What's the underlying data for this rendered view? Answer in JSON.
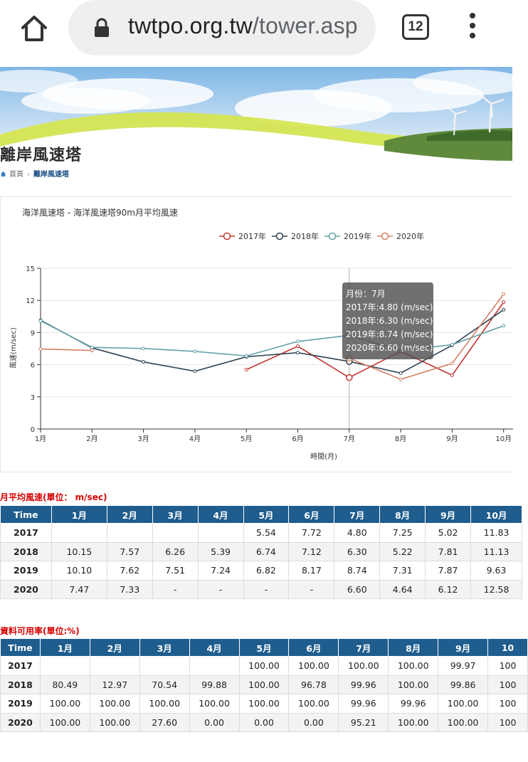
{
  "browser": {
    "url_host": "twtpo.org.tw",
    "url_path": "/tower.asp",
    "tab_count": "12"
  },
  "page": {
    "title": "離岸風速塔",
    "breadcrumb_home": "首頁",
    "breadcrumb_current": "離岸風速塔"
  },
  "chart_data": {
    "type": "line",
    "title": "海洋風速塔 - 海洋風速塔90m月平均風速",
    "xlabel": "時間(月)",
    "ylabel": "風速(m/sec)",
    "categories": [
      "1月",
      "2月",
      "3月",
      "4月",
      "5月",
      "6月",
      "7月",
      "8月",
      "9月",
      "10月"
    ],
    "ylim": [
      0,
      15
    ],
    "yticks": [
      "0",
      "3",
      "6",
      "9",
      "12",
      "15"
    ],
    "legend_position": "top",
    "grid": true,
    "series": [
      {
        "name": "2017年",
        "color": "#c23531",
        "values": [
          null,
          null,
          null,
          null,
          5.54,
          7.72,
          4.8,
          7.25,
          5.02,
          11.83
        ]
      },
      {
        "name": "2018年",
        "color": "#2f4554",
        "values": [
          10.15,
          7.57,
          6.26,
          5.39,
          6.74,
          7.12,
          6.3,
          5.22,
          7.81,
          11.13
        ]
      },
      {
        "name": "2019年",
        "color": "#61a0a8",
        "values": [
          10.1,
          7.62,
          7.51,
          7.24,
          6.82,
          8.17,
          8.74,
          7.31,
          7.87,
          9.63
        ]
      },
      {
        "name": "2020年",
        "color": "#d48265",
        "values": [
          7.47,
          7.33,
          null,
          null,
          null,
          null,
          6.6,
          4.64,
          6.12,
          12.58
        ]
      }
    ],
    "tooltip": {
      "header": "月份：7月",
      "lines": [
        "2017年:4.80 (m/sec)",
        "2018年:6.30 (m/sec)",
        "2019年:8.74 (m/sec)",
        "2020年:6.60 (m/sec)"
      ]
    }
  },
  "wind_table": {
    "title": "月平均風速(單位： m/sec)",
    "headers": [
      "Time",
      "1月",
      "2月",
      "3月",
      "4月",
      "5月",
      "6月",
      "7月",
      "8月",
      "9月",
      "10月"
    ],
    "rows": [
      [
        "2017",
        "",
        "",
        "",
        "",
        "5.54",
        "7.72",
        "4.80",
        "7.25",
        "5.02",
        "11.83"
      ],
      [
        "2018",
        "10.15",
        "7.57",
        "6.26",
        "5.39",
        "6.74",
        "7.12",
        "6.30",
        "5.22",
        "7.81",
        "11.13"
      ],
      [
        "2019",
        "10.10",
        "7.62",
        "7.51",
        "7.24",
        "6.82",
        "8.17",
        "8.74",
        "7.31",
        "7.87",
        "9.63"
      ],
      [
        "2020",
        "7.47",
        "7.33",
        "-",
        "-",
        "-",
        "-",
        "6.60",
        "4.64",
        "6.12",
        "12.58"
      ]
    ]
  },
  "availability_table": {
    "title": "資料可用率(單位:%)",
    "headers": [
      "Time",
      "1月",
      "2月",
      "3月",
      "4月",
      "5月",
      "6月",
      "7月",
      "8月",
      "9月",
      "10"
    ],
    "rows": [
      [
        "2017",
        "",
        "",
        "",
        "",
        "100.00",
        "100.00",
        "100.00",
        "100.00",
        "99.97",
        "100"
      ],
      [
        "2018",
        "80.49",
        "12.97",
        "70.54",
        "99.88",
        "100.00",
        "96.78",
        "99.96",
        "100.00",
        "99.86",
        "100"
      ],
      [
        "2019",
        "100.00",
        "100.00",
        "100.00",
        "100.00",
        "100.00",
        "100.00",
        "99.96",
        "99.96",
        "100.00",
        "100"
      ],
      [
        "2020",
        "100.00",
        "100.00",
        "27.60",
        "0.00",
        "0.00",
        "0.00",
        "95.21",
        "100.00",
        "100.00",
        "100"
      ]
    ]
  }
}
